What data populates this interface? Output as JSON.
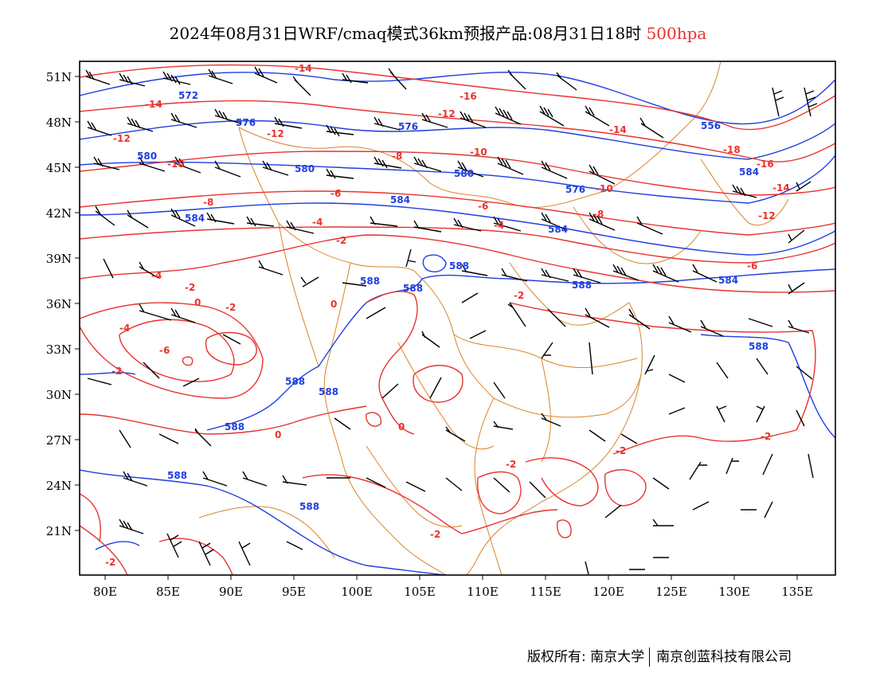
{
  "title": {
    "main": "2024年08月31日WRF/cmaq模式36km预报产品:08月31日18时",
    "level": "500hpa"
  },
  "colors": {
    "height_contour": "#1f3fe0",
    "temperature_contour": "#e8332e",
    "border": "#d9852a",
    "wind_barb": "#000000",
    "frame": "#000000"
  },
  "axes": {
    "lat_labels": [
      "51N",
      "48N",
      "45N",
      "42N",
      "39N",
      "36N",
      "33N",
      "30N",
      "27N",
      "24N",
      "21N"
    ],
    "lon_labels": [
      "80E",
      "85E",
      "90E",
      "95E",
      "100E",
      "105E",
      "110E",
      "115E",
      "120E",
      "125E",
      "130E",
      "135E"
    ]
  },
  "height_labels": [
    "572",
    "576",
    "576",
    "580",
    "580",
    "584",
    "580",
    "576",
    "584",
    "556",
    "584",
    "584",
    "588",
    "588",
    "588",
    "588",
    "588",
    "588",
    "588",
    "588",
    "588",
    "584",
    "588"
  ],
  "temperature_labels": [
    "-14",
    "-14",
    "-12",
    "-12",
    "-12",
    "-10",
    "-10",
    "-8",
    "-8",
    "-6",
    "-6",
    "-4",
    "-4",
    "-2",
    "-2",
    "0",
    "0",
    "-2",
    "-4",
    "-6",
    "-2",
    "-2",
    "-4",
    "-6",
    "-8",
    "-10",
    "-12",
    "-14",
    "-16",
    "-18",
    "-14",
    "-16",
    "-2",
    "-2",
    "-2",
    "-2",
    "-2",
    "0",
    "0"
  ],
  "footer": {
    "copyright": "版权所有: 南京大学",
    "company": "南京创蓝科技有限公司"
  }
}
